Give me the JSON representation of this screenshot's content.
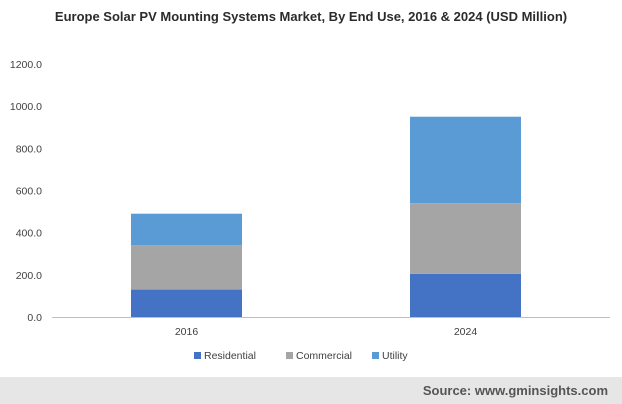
{
  "chart_data": {
    "type": "bar",
    "stacked": true,
    "title": "Europe Solar PV Mounting Systems Market, By End Use, 2016 & 2024 (USD Million)",
    "xlabel": "",
    "ylabel": "",
    "categories": [
      "2016",
      "2024"
    ],
    "ylim": [
      0,
      1200
    ],
    "yticks": [
      0,
      200,
      400,
      600,
      800,
      1000,
      1200
    ],
    "ytick_labels": [
      "0.0",
      "200.0",
      "400.0",
      "600.0",
      "800.0",
      "1000.0",
      "1200.0"
    ],
    "grid": false,
    "legend_position": "bottom",
    "series": [
      {
        "name": "Residential",
        "color": "#4472c4",
        "values": [
          130,
          205
        ]
      },
      {
        "name": "Commercial",
        "color": "#a5a5a5",
        "values": [
          210,
          335
        ]
      },
      {
        "name": "Utility",
        "color": "#5b9bd5",
        "values": [
          150,
          410
        ]
      }
    ]
  },
  "source": "Source: www.gminsights.com"
}
